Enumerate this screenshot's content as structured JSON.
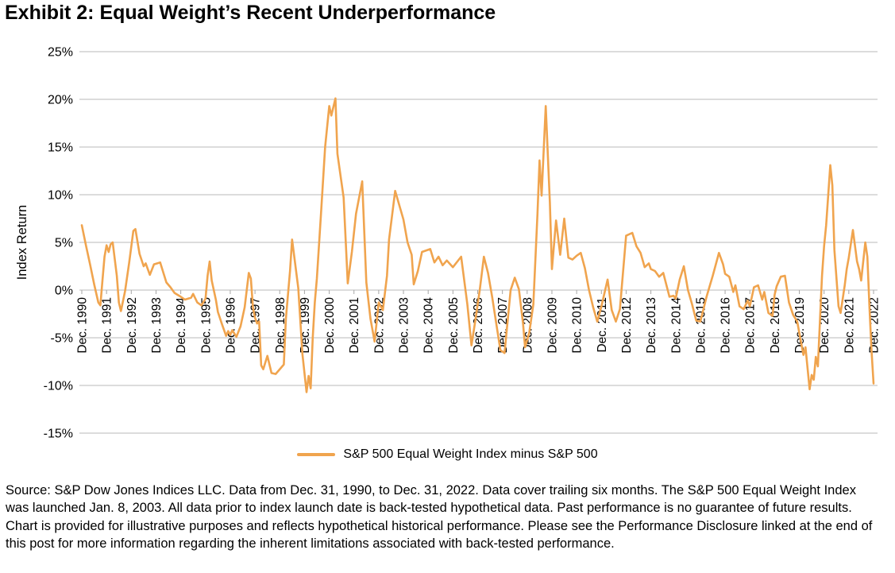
{
  "title": "Exhibit 2: Equal Weight’s Recent Underperformance",
  "legend": {
    "label": "S&P 500 Equal Weight Index minus S&P 500"
  },
  "source_note": "Source: S&P Dow Jones Indices LLC. Data from Dec. 31, 1990, to Dec. 31, 2022. Data cover trailing six months. The S&P 500 Equal Weight Index was launched Jan. 8, 2003. All data prior to index launch date is back-tested hypothetical data. Past performance is no guarantee of future results. Chart is provided for illustrative purposes and reflects hypothetical historical performance. Please see the Performance Disclosure linked at the end of this post for more information regarding the inherent limitations associated with back-tested performance.",
  "colors": {
    "line": "#F0A44E",
    "grid": "#C8C8C8",
    "tick": "#A6A6A6",
    "text": "#000000"
  },
  "chart_data": {
    "type": "line",
    "title": "Exhibit 2: Equal Weight’s Recent Underperformance",
    "xlabel": "",
    "ylabel": "Index Return",
    "ylim": [
      -15,
      25
    ],
    "yticks": [
      25,
      20,
      15,
      10,
      5,
      0,
      -5,
      -10,
      -15
    ],
    "ytick_suffix": "%",
    "grid": "horizontal",
    "legend_position": "bottom-center",
    "x_unit": "months since Dec. 1990 (0 = Dec. 1990, 384 = Dec. 2022); values are trailing 6-month return differences in %",
    "xtick_every_months": 12,
    "xtick_labels": [
      "Dec. 1990",
      "Dec. 1991",
      "Dec. 1992",
      "Dec. 1993",
      "Dec. 1994",
      "Dec. 1995",
      "Dec. 1996",
      "Dec. 1997",
      "Dec. 1998",
      "Dec. 1999",
      "Dec. 2000",
      "Dec. 2001",
      "Dec. 2002",
      "Dec. 2003",
      "Dec. 2004",
      "Dec. 2005",
      "Dec. 2006",
      "Dec. 2007",
      "Dec. 2008",
      "Dec. 2009",
      "Dec. 2010",
      "Dec. 2011",
      "Dec. 2012",
      "Dec. 2013",
      "Dec. 2014",
      "Dec. 2015",
      "Dec. 2016",
      "Dec. 2017",
      "Dec. 2018",
      "Dec. 2019",
      "Dec. 2020",
      "Dec. 2021",
      "Dec. 2022"
    ],
    "series": [
      {
        "name": "S&P 500 Equal Weight Index minus S&P 500",
        "color": "#F0A44E",
        "points": [
          [
            0,
            6.8
          ],
          [
            2,
            4.7
          ],
          [
            4,
            2.7
          ],
          [
            6,
            0.6
          ],
          [
            8,
            -1.3
          ],
          [
            9,
            -1.6
          ],
          [
            10,
            1.0
          ],
          [
            11,
            3.5
          ],
          [
            12,
            4.7
          ],
          [
            13,
            4.0
          ],
          [
            14,
            4.8
          ],
          [
            15,
            5.0
          ],
          [
            17,
            1.5
          ],
          [
            18,
            -1.3
          ],
          [
            19,
            -2.2
          ],
          [
            21,
            -0.1
          ],
          [
            23,
            2.9
          ],
          [
            25,
            6.2
          ],
          [
            26,
            6.4
          ],
          [
            28,
            3.8
          ],
          [
            30,
            2.5
          ],
          [
            31,
            2.8
          ],
          [
            33,
            1.6
          ],
          [
            35,
            2.7
          ],
          [
            38,
            2.9
          ],
          [
            41,
            0.8
          ],
          [
            43,
            0.3
          ],
          [
            45,
            -0.3
          ],
          [
            48,
            -0.7
          ],
          [
            50,
            -1.0
          ],
          [
            53,
            -0.8
          ],
          [
            54,
            -0.4
          ],
          [
            56,
            -1.3
          ],
          [
            58,
            -1.6
          ],
          [
            60,
            -0.9
          ],
          [
            61,
            1.5
          ],
          [
            62,
            3.0
          ],
          [
            63,
            1.0
          ],
          [
            65,
            -1.0
          ],
          [
            66,
            -2.3
          ],
          [
            68,
            -3.6
          ],
          [
            70,
            -4.8
          ],
          [
            71,
            -4.3
          ],
          [
            72,
            -4.7
          ],
          [
            73,
            -4.2
          ],
          [
            75,
            -4.9
          ],
          [
            77,
            -3.8
          ],
          [
            79,
            -1.8
          ],
          [
            81,
            1.8
          ],
          [
            82,
            1.2
          ],
          [
            83,
            -1.8
          ],
          [
            84,
            -2.9
          ],
          [
            85,
            -3.5
          ],
          [
            86,
            -3.3
          ],
          [
            87,
            -7.9
          ],
          [
            88,
            -8.3
          ],
          [
            90,
            -6.9
          ],
          [
            92,
            -8.7
          ],
          [
            94,
            -8.8
          ],
          [
            96,
            -8.3
          ],
          [
            98,
            -7.8
          ],
          [
            99,
            -3.0
          ],
          [
            101,
            2.0
          ],
          [
            102,
            5.3
          ],
          [
            105,
            0.2
          ],
          [
            107,
            -6.7
          ],
          [
            109,
            -10.7
          ],
          [
            110,
            -9.0
          ],
          [
            111,
            -10.3
          ],
          [
            112,
            -5.0
          ],
          [
            113,
            -1.3
          ],
          [
            114,
            1.2
          ],
          [
            116,
            8.0
          ],
          [
            118,
            15.0
          ],
          [
            120,
            19.3
          ],
          [
            121,
            18.3
          ],
          [
            123,
            20.1
          ],
          [
            124,
            14.3
          ],
          [
            127,
            9.7
          ],
          [
            129,
            0.7
          ],
          [
            131,
            4.0
          ],
          [
            133,
            8.0
          ],
          [
            136,
            11.4
          ],
          [
            138,
            0.8
          ],
          [
            140,
            -3.0
          ],
          [
            142,
            -5.4
          ],
          [
            144,
            -1.3
          ],
          [
            146,
            -2.1
          ],
          [
            148,
            1.5
          ],
          [
            149,
            5.3
          ],
          [
            152,
            10.4
          ],
          [
            156,
            7.4
          ],
          [
            158,
            5.0
          ],
          [
            160,
            3.7
          ],
          [
            161,
            0.6
          ],
          [
            163,
            2.0
          ],
          [
            165,
            4.0
          ],
          [
            169,
            4.3
          ],
          [
            171,
            2.9
          ],
          [
            173,
            3.5
          ],
          [
            175,
            2.6
          ],
          [
            177,
            3.1
          ],
          [
            180,
            2.4
          ],
          [
            184,
            3.5
          ],
          [
            187,
            -1.5
          ],
          [
            189,
            -5.8
          ],
          [
            191,
            -3.0
          ],
          [
            193,
            0.0
          ],
          [
            195,
            3.5
          ],
          [
            197,
            1.8
          ],
          [
            199,
            -0.7
          ],
          [
            201,
            -3.5
          ],
          [
            203,
            -6.3
          ],
          [
            205,
            -6.6
          ],
          [
            208,
            0.0
          ],
          [
            210,
            1.3
          ],
          [
            212,
            0.1
          ],
          [
            214,
            -3.5
          ],
          [
            215,
            -6.0
          ],
          [
            217,
            -4.5
          ],
          [
            219,
            -1.5
          ],
          [
            221,
            8.0
          ],
          [
            222,
            13.6
          ],
          [
            223,
            9.9
          ],
          [
            225,
            19.3
          ],
          [
            227,
            9.2
          ],
          [
            228,
            2.2
          ],
          [
            230,
            7.3
          ],
          [
            232,
            3.7
          ],
          [
            234,
            7.5
          ],
          [
            236,
            3.4
          ],
          [
            238,
            3.2
          ],
          [
            240,
            3.6
          ],
          [
            242,
            3.9
          ],
          [
            244,
            2.3
          ],
          [
            246,
            0.0
          ],
          [
            248,
            -1.8
          ],
          [
            250,
            -3.3
          ],
          [
            252,
            -1.7
          ],
          [
            255,
            1.1
          ],
          [
            257,
            -2.1
          ],
          [
            259,
            -3.3
          ],
          [
            261,
            -2.0
          ],
          [
            264,
            5.7
          ],
          [
            267,
            6.0
          ],
          [
            269,
            4.6
          ],
          [
            271,
            3.9
          ],
          [
            273,
            2.4
          ],
          [
            275,
            2.8
          ],
          [
            276,
            2.2
          ],
          [
            278,
            2.0
          ],
          [
            280,
            1.4
          ],
          [
            282,
            1.8
          ],
          [
            285,
            -0.7
          ],
          [
            287,
            -0.6
          ],
          [
            288,
            -0.9
          ],
          [
            290,
            1.1
          ],
          [
            292,
            2.5
          ],
          [
            294,
            0.0
          ],
          [
            296,
            -1.5
          ],
          [
            298,
            -3.2
          ],
          [
            300,
            -3.3
          ],
          [
            303,
            -0.7
          ],
          [
            306,
            1.5
          ],
          [
            309,
            3.9
          ],
          [
            311,
            2.7
          ],
          [
            312,
            1.7
          ],
          [
            314,
            1.4
          ],
          [
            316,
            -0.2
          ],
          [
            317,
            0.5
          ],
          [
            319,
            -1.7
          ],
          [
            321,
            -2.0
          ],
          [
            323,
            -1.1
          ],
          [
            324,
            -1.7
          ],
          [
            326,
            0.3
          ],
          [
            328,
            0.5
          ],
          [
            330,
            -1.0
          ],
          [
            331,
            -0.2
          ],
          [
            333,
            -2.4
          ],
          [
            335,
            -2.7
          ],
          [
            336,
            -0.5
          ],
          [
            337,
            0.4
          ],
          [
            339,
            1.4
          ],
          [
            341,
            1.5
          ],
          [
            343,
            -1.3
          ],
          [
            345,
            -2.6
          ],
          [
            347,
            -3.3
          ],
          [
            348,
            -4.5
          ],
          [
            350,
            -6.8
          ],
          [
            351,
            -6.0
          ],
          [
            353,
            -10.4
          ],
          [
            354,
            -8.9
          ],
          [
            355,
            -9.4
          ],
          [
            356,
            -7.0
          ],
          [
            357,
            -8.0
          ],
          [
            358,
            -3.2
          ],
          [
            359,
            1.5
          ],
          [
            360,
            4.6
          ],
          [
            361,
            6.8
          ],
          [
            363,
            13.1
          ],
          [
            364,
            11.0
          ],
          [
            365,
            4.2
          ],
          [
            367,
            -1.7
          ],
          [
            368,
            -2.4
          ],
          [
            370,
            0.5
          ],
          [
            371,
            2.2
          ],
          [
            372,
            3.4
          ],
          [
            374,
            6.3
          ],
          [
            376,
            3.0
          ],
          [
            377,
            2.2
          ],
          [
            378,
            1.0
          ],
          [
            380,
            5.0
          ],
          [
            381,
            3.5
          ],
          [
            382,
            -1.7
          ],
          [
            383,
            -6.3
          ],
          [
            384,
            -9.8
          ]
        ]
      }
    ]
  }
}
